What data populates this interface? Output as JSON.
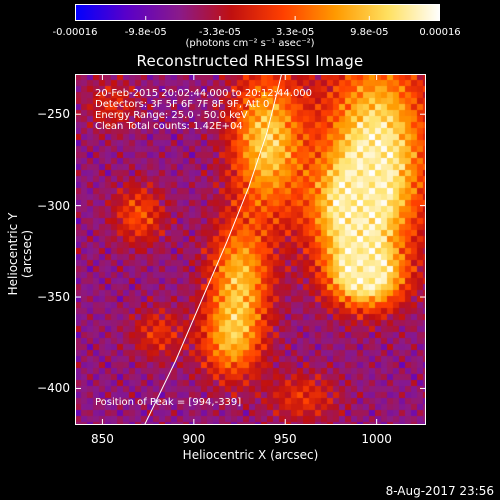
{
  "colorbar": {
    "ticks": [
      "-0.00016",
      "-9.8e-05",
      "-3.3e-05",
      "3.3e-05",
      "9.8e-05",
      "0.00016"
    ],
    "tick_values": [
      -0.00016,
      -9.8e-05,
      -3.3e-05,
      3.3e-05,
      9.8e-05,
      0.00016
    ],
    "units": "(photons cm⁻² s⁻¹ asec⁻²)",
    "colors": [
      "#0000ff",
      "#5a00c8",
      "#8a1a8a",
      "#c01010",
      "#ff4000",
      "#ff9a00",
      "#ffe060",
      "#ffffff"
    ]
  },
  "info": {
    "line1": "20-Feb-2015 20:02:44.000 to 20:12:44.000",
    "line2": "Detectors: 3F 5F 6F 7F 8F 9F, Att 0",
    "line3": "Energy Range: 25.0 - 50.0 keV",
    "line4": "Clean     Total counts: 1.42E+04",
    "peak": "Position of Peak = [994,-339]"
  },
  "footer": "8-Aug-2017 23:56",
  "chart_data": {
    "type": "heatmap",
    "title": "Reconstructed RHESSI Image",
    "xlabel": "Heliocentric X (arcsec)",
    "ylabel": "Heliocentric Y (arcsec)",
    "xlim": [
      835,
      1027
    ],
    "ylim": [
      -420,
      -228
    ],
    "xticks": [
      850,
      900,
      950,
      1000
    ],
    "yticks": [
      -250,
      -300,
      -350,
      -400
    ],
    "limb_curve": [
      [
        873,
        -420
      ],
      [
        890,
        -385
      ],
      [
        905,
        -350
      ],
      [
        918,
        -320
      ],
      [
        930,
        -290
      ],
      [
        940,
        -260
      ],
      [
        948,
        -228
      ]
    ],
    "sources": [
      {
        "x": 1000,
        "y": -270,
        "sx": 20,
        "sy": 38,
        "amp": 1.0
      },
      {
        "x": 994,
        "y": -339,
        "sx": 14,
        "sy": 12,
        "amp": 1.0
      },
      {
        "x": 985,
        "y": -305,
        "sx": 16,
        "sy": 20,
        "amp": 0.7
      },
      {
        "x": 940,
        "y": -265,
        "sx": 14,
        "sy": 28,
        "amp": 0.85
      },
      {
        "x": 925,
        "y": -340,
        "sx": 12,
        "sy": 22,
        "amp": 0.75
      },
      {
        "x": 920,
        "y": -375,
        "sx": 12,
        "sy": 15,
        "amp": 0.6
      },
      {
        "x": 870,
        "y": -305,
        "sx": 10,
        "sy": 12,
        "amp": 0.45
      },
      {
        "x": 880,
        "y": -370,
        "sx": 10,
        "sy": 10,
        "amp": 0.35
      },
      {
        "x": 855,
        "y": -245,
        "sx": 10,
        "sy": 10,
        "amp": 0.3
      },
      {
        "x": 960,
        "y": -405,
        "sx": 14,
        "sy": 10,
        "amp": 0.35
      }
    ]
  }
}
